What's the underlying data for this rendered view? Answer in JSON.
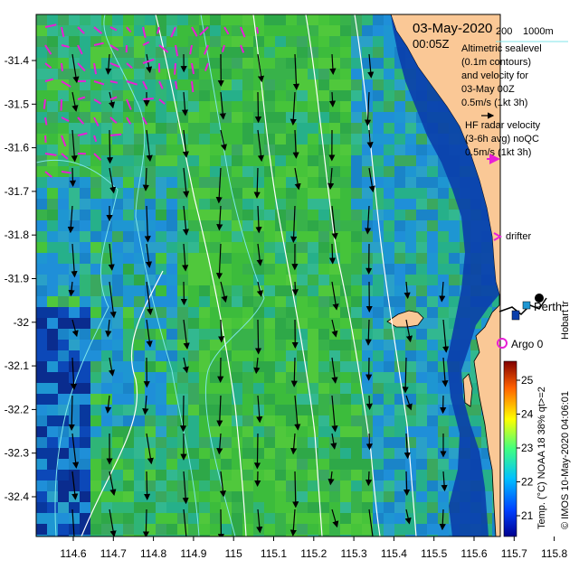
{
  "map": {
    "date": "03-May-2020",
    "time": "00:05Z",
    "scale_200": "200",
    "scale_1000": "1000m",
    "altimetry_lines": [
      "Altimetric sealevel",
      "(0.1m contours)",
      "and velocity for",
      "03-May 00Z",
      "0.5m/s (1kt 3h)"
    ],
    "hf_lines": [
      "HF radar velocity",
      "(3-6h avg) noQC",
      "0.5m/s (1kt 3h)"
    ],
    "drifter_label": "drifter",
    "argo_label": "Argo 0",
    "perth_label": "Perth",
    "hobart_label": "Hobart tr",
    "credit": "© IMOS 10-May-2020 04:06:01",
    "colorbar_title": "Temp. (°C) NOAA 18 38% qt>=2",
    "colorbar_ticks": [
      "25",
      "24",
      "23",
      "22",
      "21"
    ],
    "x_ticks": [
      "114.6",
      "114.7",
      "114.8",
      "114.9",
      "115",
      "115.1",
      "115.2",
      "115.3",
      "115.4",
      "115.5",
      "115.6",
      "115.7",
      "115.8"
    ],
    "y_ticks": [
      "-31.4",
      "-31.5",
      "-31.6",
      "-31.7",
      "-31.8",
      "-31.9",
      "-32",
      "-32.1",
      "-32.2",
      "-32.3",
      "-32.4"
    ],
    "colors": {
      "land": "#fac896",
      "ocean_deep": "#08389e",
      "sst_cool": "#1e96d2",
      "sst_warm": "#3cbc3c",
      "hf_arrow": "#e81fd6",
      "contour": "#ffffff",
      "bathymetry": "#7fe6ea"
    }
  }
}
